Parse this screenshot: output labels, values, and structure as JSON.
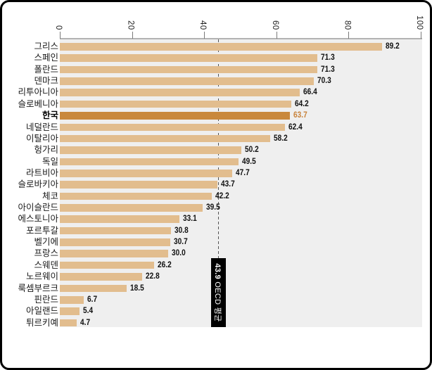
{
  "chart_data": {
    "type": "bar",
    "orientation": "horizontal",
    "title": "",
    "xlabel": "",
    "ylabel": "",
    "xlim": [
      0,
      100
    ],
    "xticks": [
      0,
      20,
      40,
      60,
      80,
      100
    ],
    "grid": "off",
    "legend": "none",
    "categories": [
      "그리스",
      "스페인",
      "폴란드",
      "덴마크",
      "리투아니아",
      "슬로베니아",
      "한국",
      "네덜란드",
      "이탈리아",
      "헝가리",
      "독일",
      "라트비아",
      "슬로바키아",
      "체코",
      "아이슬란드",
      "에스토니아",
      "포르투갈",
      "벨기에",
      "프랑스",
      "스웨덴",
      "노르웨이",
      "룩셈부르크",
      "핀란드",
      "아일랜드",
      "튀르키예"
    ],
    "values": [
      89.2,
      71.3,
      71.3,
      70.3,
      66.4,
      64.2,
      63.7,
      62.4,
      58.2,
      50.2,
      49.5,
      47.7,
      43.7,
      42.2,
      39.5,
      33.1,
      30.8,
      30.7,
      30.0,
      26.2,
      22.8,
      18.5,
      6.7,
      5.4,
      4.7
    ],
    "highlight_category": "한국",
    "highlight_index": 6,
    "average_line": {
      "value": 43.9,
      "label_value": "43.9",
      "label_text": " OECD 평균"
    }
  },
  "colors": {
    "bar": "#e2bd8e",
    "bar_highlight": "#c9883c",
    "value_text": "#111111",
    "value_text_highlight": "#c8823a",
    "plot_background": "#efefef",
    "axis_line": "#b3b3b3",
    "dashed_line": "#555555",
    "annotation_background": "#000000",
    "annotation_text": "#ffffff"
  }
}
